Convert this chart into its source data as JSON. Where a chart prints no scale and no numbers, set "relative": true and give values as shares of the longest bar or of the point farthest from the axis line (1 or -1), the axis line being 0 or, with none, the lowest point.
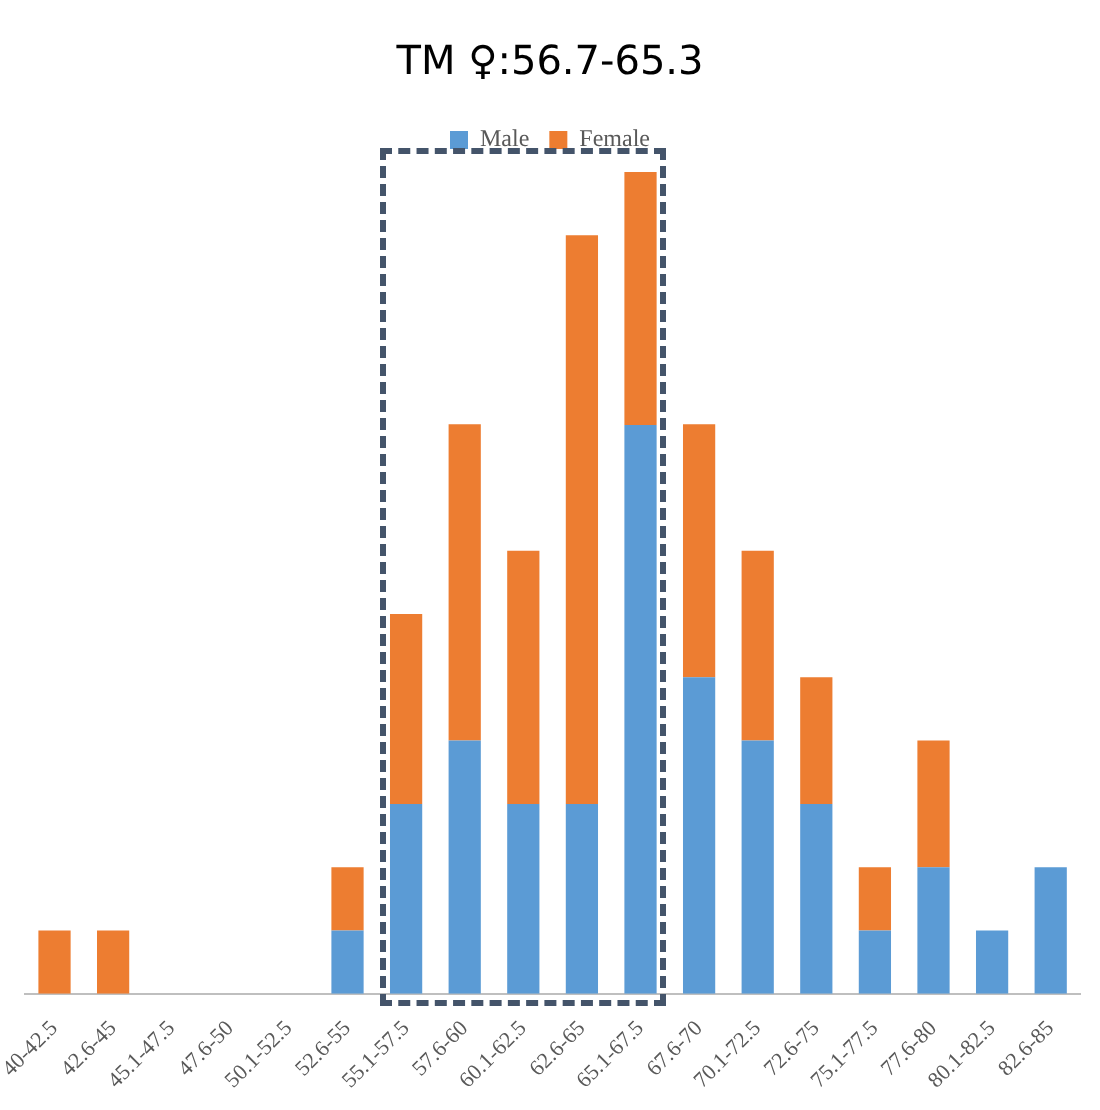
{
  "chart_data": {
    "type": "bar",
    "title": "TM ♀:56.7-65.3",
    "relative": true,
    "stacked": true,
    "legend": "top",
    "grid": false,
    "categories": [
      "40-42.5",
      "42.6-45",
      "45.1-47.5",
      "47.6-50",
      "50.1-52.5",
      "52.6-55",
      "55.1-57.5",
      "57.6-60",
      "60.1-62.5",
      "62.6-65",
      "65.1-67.5",
      "67.6-70",
      "70.1-72.5",
      "72.6-75",
      "75.1-77.5",
      "77.6-80",
      "80.1-82.5",
      "82.6-85"
    ],
    "series": [
      {
        "name": "Male",
        "color": "#5b9bd5",
        "values": [
          0,
          0,
          0,
          0,
          0,
          0.077,
          0.231,
          0.308,
          0.231,
          0.231,
          0.692,
          0.385,
          0.308,
          0.231,
          0.077,
          0.154,
          0.077,
          0.154
        ]
      },
      {
        "name": "Female",
        "color": "#ed7d31",
        "values": [
          0.077,
          0.077,
          0,
          0,
          0,
          0.077,
          0.231,
          0.385,
          0.308,
          0.692,
          0.308,
          0.308,
          0.231,
          0.154,
          0.077,
          0.154,
          0,
          0
        ]
      }
    ]
  }
}
